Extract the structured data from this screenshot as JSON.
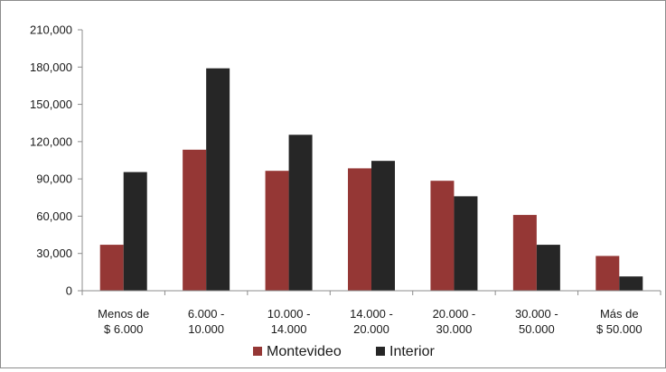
{
  "chart_data": {
    "type": "bar",
    "categories": [
      [
        "Menos de",
        "$ 6.000"
      ],
      [
        "6.000 -",
        "10.000"
      ],
      [
        "10.000 -",
        "14.000"
      ],
      [
        "14.000 -",
        "20.000"
      ],
      [
        "20.000 -",
        "30.000"
      ],
      [
        "30.000 -",
        "50.000"
      ],
      [
        "Más de",
        "$ 50.000"
      ]
    ],
    "series": [
      {
        "name": "Montevideo",
        "color": "#953735",
        "values": [
          37000,
          113500,
          96500,
          98500,
          88500,
          61000,
          28000
        ]
      },
      {
        "name": "Interior",
        "color": "#262626",
        "values": [
          95500,
          179000,
          125500,
          104500,
          76000,
          37000,
          11500
        ]
      }
    ],
    "yticks": [
      "0",
      "30,000",
      "60,000",
      "90,000",
      "120,000",
      "150,000",
      "180,000",
      "210,000"
    ],
    "ylim": [
      0,
      210000
    ],
    "legend_position": "bottom",
    "grid": false
  }
}
